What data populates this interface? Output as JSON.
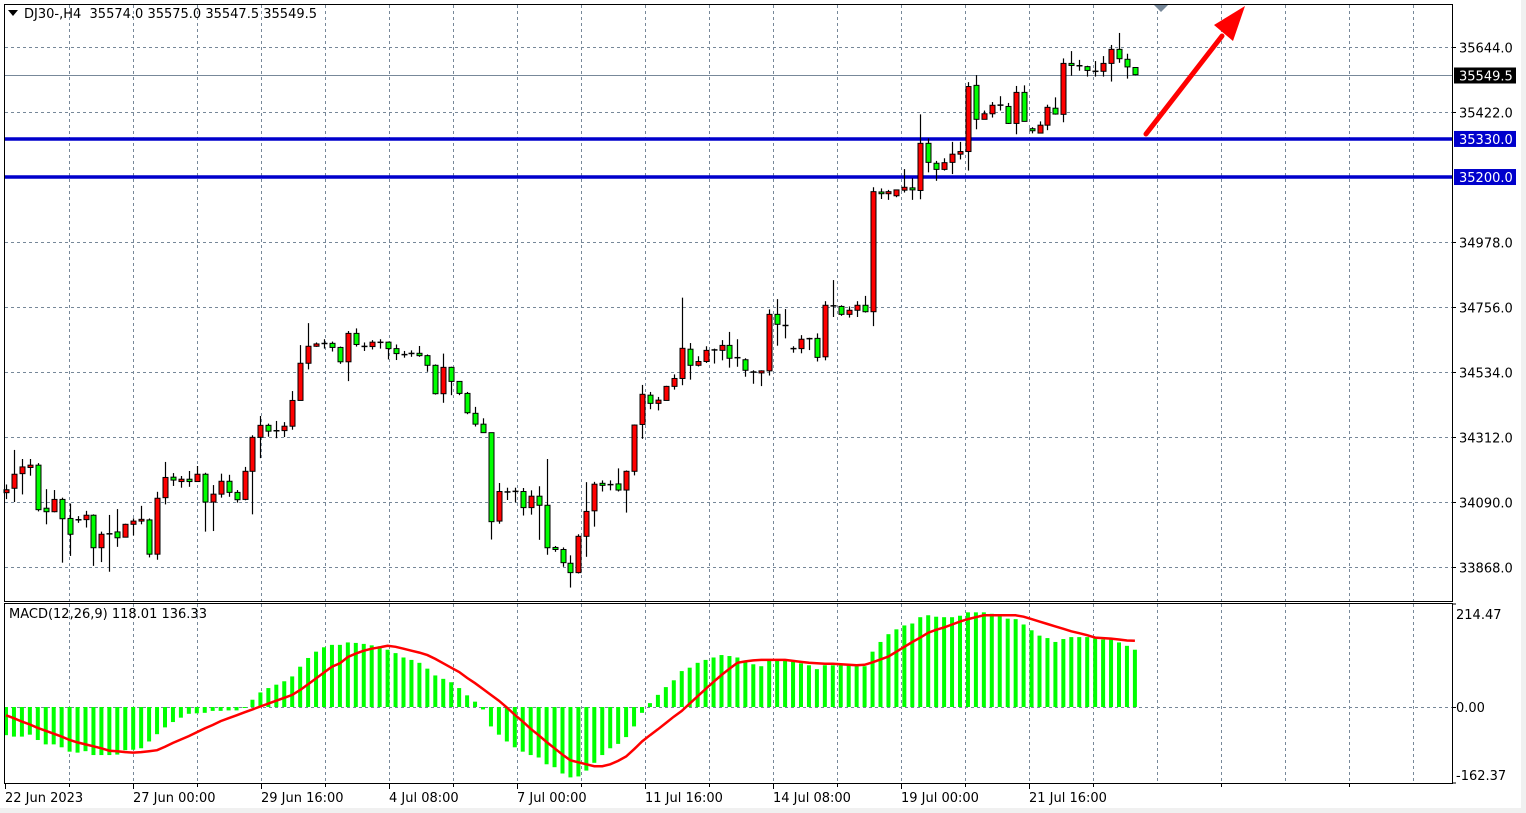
{
  "header": {
    "symbol": "DJ30-,H4",
    "open": "35574.0",
    "high": "35575.0",
    "low": "35547.5",
    "close": "35549.5"
  },
  "price_axis": {
    "ticks": [
      "35644.0",
      "35422.0",
      "34978.0",
      "34756.0",
      "34534.0",
      "34312.0",
      "34090.0",
      "33868.0"
    ]
  },
  "hlines": [
    {
      "label": "35330.0",
      "value": 35330,
      "color": "#0000cc"
    },
    {
      "label": "35200.0",
      "value": 35200,
      "color": "#0000cc"
    }
  ],
  "current_price": {
    "label": "35549.5",
    "value": 35549.5
  },
  "macd": {
    "title": "MACD(12,26,9) 118.01 136.33",
    "axis_labels": [
      "214.47",
      "0.00",
      "-162.37"
    ],
    "axis_range": [
      -162.37,
      214.47
    ],
    "histogram_color": "#00ff00",
    "signal_color": "#ff0000",
    "histogram": [
      -58,
      -61,
      -61,
      -57,
      -68,
      -77,
      -77,
      -83,
      -92,
      -94,
      -91,
      -99,
      -99,
      -99,
      -98,
      -89,
      -88,
      -85,
      -71,
      -56,
      -42,
      -31,
      -22,
      -14,
      -13,
      -12,
      -8,
      -8,
      -7,
      -7,
      -1,
      15,
      30,
      39,
      46,
      53,
      63,
      83,
      101,
      114,
      123,
      128,
      128,
      133,
      132,
      130,
      127,
      125,
      118,
      111,
      102,
      97,
      91,
      79,
      65,
      58,
      51,
      39,
      24,
      11,
      -5,
      -40,
      -57,
      -71,
      -83,
      -92,
      -99,
      -104,
      -118,
      -124,
      -137,
      -145,
      -143,
      -131,
      -115,
      -99,
      -85,
      -76,
      -62,
      -40,
      -12,
      8,
      25,
      41,
      55,
      74,
      81,
      91,
      97,
      102,
      107,
      105,
      102,
      93,
      88,
      84,
      97,
      98,
      98,
      93,
      90,
      86,
      78,
      86,
      86,
      86,
      86,
      84,
      84,
      114,
      134,
      150,
      160,
      168,
      172,
      185,
      189,
      186,
      185,
      185,
      188,
      195,
      195,
      195,
      192,
      188,
      182,
      181,
      170,
      158,
      147,
      142,
      134,
      140,
      144,
      144,
      144,
      142,
      139,
      139,
      133,
      126,
      118.01
    ],
    "signal": [
      -17,
      -23,
      -30,
      -36,
      -43,
      -49,
      -55,
      -61,
      -68,
      -73,
      -77,
      -81,
      -85,
      -90,
      -91,
      -93,
      -94,
      -93,
      -91,
      -89,
      -82,
      -74,
      -67,
      -60,
      -52,
      -44,
      -37,
      -29,
      -23,
      -17,
      -11,
      -5,
      1,
      7,
      13,
      19,
      25,
      35,
      47,
      59,
      71,
      83,
      90,
      103,
      110,
      116,
      120,
      123,
      126,
      124,
      120,
      116,
      112,
      107,
      99,
      90,
      81,
      72,
      60,
      49,
      37,
      25,
      13,
      -1,
      -16,
      -30,
      -45,
      -58,
      -72,
      -85,
      -98,
      -110,
      -114,
      -118,
      -122,
      -122,
      -118,
      -111,
      -102,
      -87,
      -71,
      -58,
      -46,
      -33,
      -20,
      -8,
      7,
      22,
      37,
      52,
      66,
      79,
      91,
      94,
      96,
      97,
      97,
      97,
      97,
      95,
      93,
      91,
      90,
      89,
      89,
      88,
      87,
      86,
      87,
      92,
      98,
      104,
      114,
      124,
      134,
      143,
      153,
      159,
      164,
      170,
      176,
      181,
      185,
      189,
      189,
      189,
      189,
      189,
      186,
      181,
      176,
      171,
      166,
      161,
      156,
      152,
      148,
      143,
      142,
      141,
      139,
      137,
      136.33
    ]
  },
  "time_labels": [
    "22 Jun 2023",
    "27 Jun 00:00",
    "29 Jun 16:00",
    "4 Jul 08:00",
    "7 Jul 00:00",
    "11 Jul 16:00",
    "14 Jul 08:00",
    "19 Jul 00:00",
    "21 Jul 16:00"
  ],
  "colors": {
    "bull": "#ff0000",
    "bear": "#00ff00",
    "grid": "#778899",
    "arrow": "#ff0000",
    "level": "#0000cc"
  },
  "annotation": {
    "type": "arrow",
    "direction": "up-right",
    "color": "#ff0000"
  },
  "chart_data": {
    "type": "candlestick",
    "symbol": "DJ30-",
    "timeframe": "H4",
    "ylim": [
      33820,
      35760
    ],
    "grid": true,
    "candles_ohlc": [
      [
        34122,
        34150,
        34100,
        34132
      ],
      [
        34137,
        34268,
        34090,
        34185
      ],
      [
        34187,
        34237,
        34116,
        34210
      ],
      [
        34208,
        34237,
        34180,
        34216
      ],
      [
        34216,
        34223,
        34058,
        34064
      ],
      [
        34069,
        34134,
        34014,
        34057
      ],
      [
        34057,
        34131,
        34055,
        34099
      ],
      [
        34099,
        34105,
        33883,
        34033
      ],
      [
        34034,
        34085,
        33906,
        33980
      ],
      [
        34028,
        34042,
        34019,
        34031
      ],
      [
        34030,
        34060,
        34003,
        34045
      ],
      [
        34045,
        34048,
        33872,
        33934
      ],
      [
        33934,
        33989,
        33885,
        33980
      ],
      [
        33980,
        34046,
        33852,
        33983
      ],
      [
        33988,
        34066,
        33937,
        33968
      ],
      [
        33970,
        34016,
        33970,
        34014
      ],
      [
        34014,
        34034,
        33976,
        34025
      ],
      [
        34025,
        34077,
        34014,
        34031
      ],
      [
        34029,
        34034,
        33901,
        33912
      ],
      [
        33912,
        34125,
        33893,
        34103
      ],
      [
        34105,
        34227,
        34082,
        34174
      ],
      [
        34175,
        34189,
        34145,
        34165
      ],
      [
        34160,
        34179,
        34139,
        34168
      ],
      [
        34168,
        34196,
        34142,
        34160
      ],
      [
        34160,
        34213,
        34160,
        34185
      ],
      [
        34185,
        34190,
        33989,
        34090
      ],
      [
        34090,
        34148,
        33991,
        34117
      ],
      [
        34117,
        34187,
        34105,
        34161
      ],
      [
        34161,
        34183,
        34108,
        34123
      ],
      [
        34123,
        34131,
        34088,
        34098
      ],
      [
        34099,
        34210,
        34096,
        34195
      ],
      [
        34195,
        34318,
        34048,
        34311
      ],
      [
        34311,
        34384,
        34240,
        34352
      ],
      [
        34352,
        34358,
        34313,
        34332
      ],
      [
        34333,
        34367,
        34308,
        34334
      ],
      [
        34334,
        34363,
        34312,
        34349
      ],
      [
        34349,
        34469,
        34337,
        34437
      ],
      [
        34437,
        34626,
        34437,
        34564
      ],
      [
        34564,
        34701,
        34543,
        34622
      ],
      [
        34622,
        34635,
        34620,
        34630
      ],
      [
        34630,
        34646,
        34614,
        34633
      ],
      [
        34632,
        34638,
        34604,
        34618
      ],
      [
        34618,
        34621,
        34562,
        34569
      ],
      [
        34569,
        34674,
        34503,
        34666
      ],
      [
        34666,
        34683,
        34621,
        34628
      ],
      [
        34622,
        34635,
        34606,
        34621
      ],
      [
        34621,
        34643,
        34611,
        34636
      ],
      [
        34635,
        34646,
        34614,
        34636
      ],
      [
        34636,
        34638,
        34577,
        34614
      ],
      [
        34614,
        34628,
        34575,
        34597
      ],
      [
        34594,
        34606,
        34583,
        34593
      ],
      [
        34597,
        34608,
        34586,
        34598
      ],
      [
        34598,
        34623,
        34586,
        34590
      ],
      [
        34590,
        34594,
        34535,
        34557
      ],
      [
        34557,
        34560,
        34457,
        34460
      ],
      [
        34460,
        34597,
        34429,
        34550
      ],
      [
        34550,
        34552,
        34455,
        34502
      ],
      [
        34502,
        34502,
        34455,
        34461
      ],
      [
        34461,
        34466,
        34390,
        34395
      ],
      [
        34393,
        34415,
        34348,
        34356
      ],
      [
        34356,
        34376,
        34327,
        34327
      ],
      [
        34327,
        34327,
        33962,
        34023
      ],
      [
        34025,
        34155,
        34016,
        34126
      ],
      [
        34124,
        34139,
        34097,
        34125
      ],
      [
        34126,
        34139,
        34089,
        34127
      ],
      [
        34126,
        34138,
        34044,
        34071
      ],
      [
        34071,
        34130,
        34047,
        34110
      ],
      [
        34110,
        34144,
        33961,
        34079
      ],
      [
        34079,
        34237,
        33910,
        33934
      ],
      [
        33935,
        33940,
        33920,
        33928
      ],
      [
        33928,
        33935,
        33869,
        33883
      ],
      [
        33881,
        33908,
        33798,
        33849
      ],
      [
        33849,
        33980,
        33846,
        33973
      ],
      [
        33973,
        34158,
        33903,
        34058
      ],
      [
        34060,
        34159,
        34006,
        34151
      ],
      [
        34154,
        34164,
        34126,
        34147
      ],
      [
        34149,
        34164,
        34130,
        34150
      ],
      [
        34152,
        34205,
        34126,
        34131
      ],
      [
        34131,
        34198,
        34054,
        34195
      ],
      [
        34195,
        34355,
        34181,
        34353
      ],
      [
        34355,
        34490,
        34306,
        34458
      ],
      [
        34455,
        34466,
        34407,
        34427
      ],
      [
        34427,
        34449,
        34403,
        34438
      ],
      [
        34437,
        34487,
        34437,
        34485
      ],
      [
        34485,
        34526,
        34474,
        34512
      ],
      [
        34512,
        34788,
        34489,
        34615
      ],
      [
        34612,
        34633,
        34508,
        34557
      ],
      [
        34557,
        34588,
        34553,
        34570
      ],
      [
        34570,
        34622,
        34565,
        34608
      ],
      [
        34609,
        34614,
        34563,
        34610
      ],
      [
        34608,
        34643,
        34574,
        34625
      ],
      [
        34625,
        34671,
        34549,
        34581
      ],
      [
        34583,
        34646,
        34552,
        34583
      ],
      [
        34576,
        34581,
        34518,
        34540
      ],
      [
        34534,
        34540,
        34494,
        34534
      ],
      [
        34531,
        34540,
        34486,
        34538
      ],
      [
        34538,
        34748,
        34522,
        34731
      ],
      [
        34731,
        34783,
        34624,
        34697
      ],
      [
        34693,
        34749,
        34649,
        34693
      ],
      [
        34614,
        34622,
        34600,
        34614
      ],
      [
        34614,
        34660,
        34598,
        34646
      ],
      [
        34648,
        34651,
        34609,
        34648
      ],
      [
        34649,
        34666,
        34570,
        34584
      ],
      [
        34586,
        34776,
        34574,
        34762
      ],
      [
        34760,
        34848,
        34722,
        34760
      ],
      [
        34758,
        34762,
        34726,
        34731
      ],
      [
        34731,
        34758,
        34720,
        34745
      ],
      [
        34745,
        34776,
        34722,
        34762
      ],
      [
        34762,
        34794,
        34737,
        34740
      ],
      [
        34740,
        35165,
        34691,
        35150
      ],
      [
        35149,
        35161,
        35125,
        35143
      ],
      [
        35143,
        35156,
        35122,
        35150
      ],
      [
        35136,
        35156,
        35131,
        35156
      ],
      [
        35155,
        35227,
        35147,
        35165
      ],
      [
        35163,
        35196,
        35122,
        35156
      ],
      [
        35154,
        35414,
        35124,
        35315
      ],
      [
        35315,
        35332,
        35216,
        35250
      ],
      [
        35247,
        35255,
        35187,
        35226
      ],
      [
        35226,
        35264,
        35222,
        35249
      ],
      [
        35250,
        35320,
        35210,
        35278
      ],
      [
        35278,
        35320,
        35260,
        35287
      ],
      [
        35287,
        35524,
        35222,
        35509
      ],
      [
        35513,
        35548,
        35363,
        35397
      ],
      [
        35397,
        35427,
        35397,
        35416
      ],
      [
        35416,
        35456,
        35403,
        35445
      ],
      [
        35445,
        35476,
        35427,
        35446
      ],
      [
        35441,
        35453,
        35381,
        35383
      ],
      [
        35383,
        35511,
        35346,
        35489
      ],
      [
        35489,
        35513,
        35390,
        35390
      ],
      [
        35365,
        35370,
        35349,
        35358
      ],
      [
        35350,
        35390,
        35350,
        35377
      ],
      [
        35377,
        35447,
        35360,
        35438
      ],
      [
        35435,
        35472,
        35413,
        35415
      ],
      [
        35414,
        35605,
        35387,
        35588
      ],
      [
        35588,
        35630,
        35546,
        35581
      ],
      [
        35580,
        35600,
        35563,
        35580
      ],
      [
        35577,
        35580,
        35543,
        35564
      ],
      [
        35561,
        35596,
        35543,
        35561
      ],
      [
        35561,
        35613,
        35543,
        35588
      ],
      [
        35588,
        35651,
        35526,
        35636
      ],
      [
        35636,
        35692,
        35590,
        35604
      ],
      [
        35602,
        35621,
        35536,
        35576
      ],
      [
        35574,
        35575,
        35547.5,
        35549.5
      ]
    ]
  }
}
